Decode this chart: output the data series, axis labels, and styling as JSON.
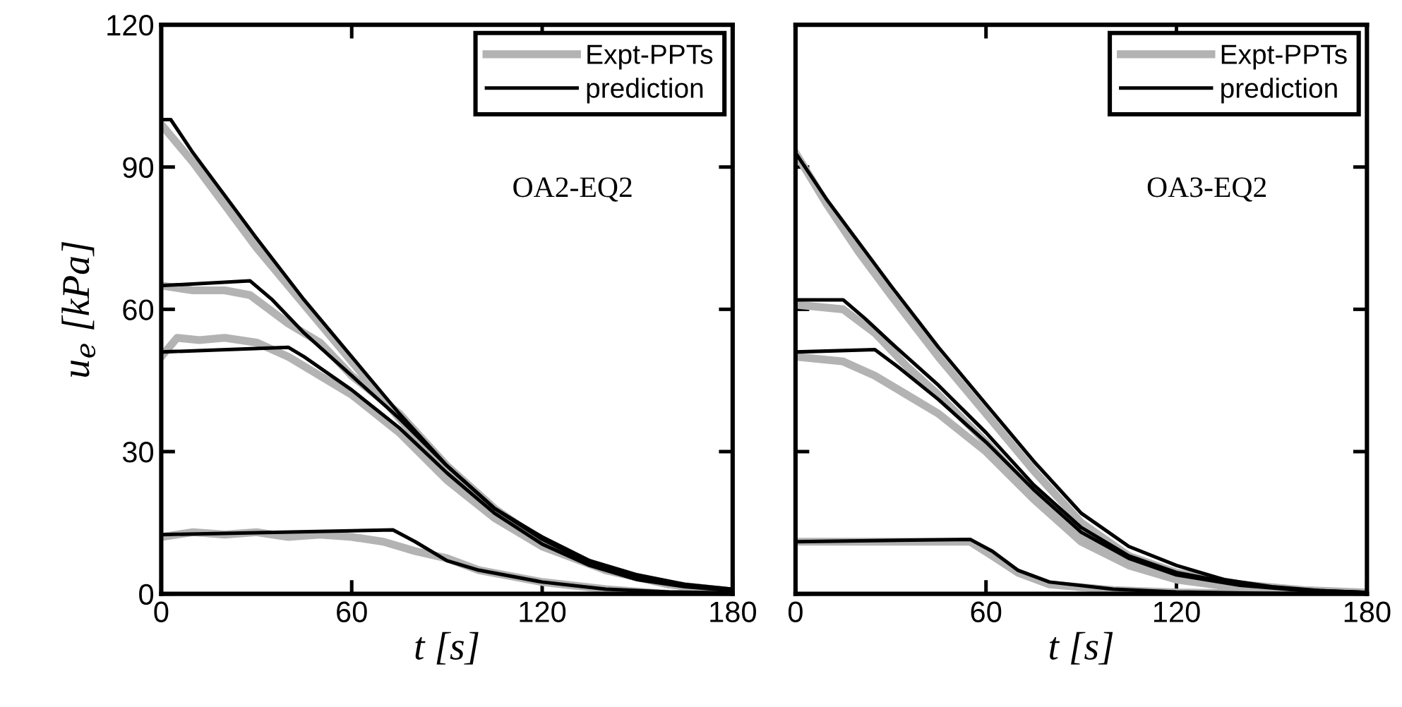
{
  "chart_data": [
    {
      "type": "line",
      "xlabel": "t [s]",
      "ylabel": "u$_{e}$ [kPa]",
      "annotations": [
        "OA2-EQ2"
      ],
      "xlim": [
        0,
        180
      ],
      "xticks": [
        0,
        60,
        120,
        180
      ],
      "ylim": [
        0,
        120
      ],
      "yticks": [
        0,
        30,
        60,
        90,
        120
      ],
      "legend": "top right",
      "grid": false,
      "series": [
        {
          "name": "Expt-PPTs",
          "color": "#b3b3b3",
          "x": [
            0,
            10,
            20,
            30,
            45,
            60,
            75,
            90,
            105,
            120,
            135,
            150,
            165,
            180
          ],
          "values": [
            99,
            91,
            82,
            73,
            61,
            49,
            37,
            26,
            17,
            11,
            6.5,
            3.5,
            1.5,
            0.5
          ]
        },
        {
          "color": "#b3b3b3",
          "x": [
            0,
            10,
            20,
            28,
            40,
            50,
            60,
            75,
            90,
            105,
            120,
            140,
            160,
            180
          ],
          "values": [
            65,
            64,
            64,
            63,
            57,
            53,
            46,
            38,
            27,
            18,
            11,
            5,
            2,
            0.5
          ]
        },
        {
          "color": "#b3b3b3",
          "x": [
            0,
            5,
            12,
            20,
            30,
            40,
            50,
            60,
            75,
            90,
            105,
            120,
            140,
            160,
            180
          ],
          "values": [
            50,
            54,
            53.5,
            54,
            53,
            50,
            46,
            42,
            34,
            24,
            16,
            10,
            5,
            2,
            0.5
          ]
        },
        {
          "color": "#b3b3b3",
          "x": [
            0,
            10,
            20,
            30,
            40,
            50,
            60,
            70,
            80,
            90,
            100,
            120,
            140,
            160,
            180
          ],
          "values": [
            12,
            13,
            12.5,
            13,
            12,
            12.5,
            12,
            11,
            9,
            7.5,
            5,
            2.5,
            1,
            0,
            0
          ]
        },
        {
          "name": "prediction",
          "color": "#000000",
          "x": [
            0,
            3,
            10,
            20,
            30,
            45,
            60,
            75,
            90,
            105,
            120,
            135,
            150,
            165,
            180
          ],
          "values": [
            100,
            100,
            93,
            84,
            75,
            62,
            50,
            38,
            27,
            18,
            12,
            7,
            4,
            2,
            1
          ]
        },
        {
          "color": "#000000",
          "x": [
            0,
            28,
            35,
            45,
            60,
            75,
            90,
            105,
            120,
            135,
            150,
            165,
            180
          ],
          "values": [
            65,
            66,
            62,
            55,
            46,
            37,
            27,
            18,
            11.5,
            6.5,
            3.5,
            1.8,
            0.8
          ]
        },
        {
          "color": "#000000",
          "x": [
            0,
            40,
            45,
            60,
            75,
            90,
            105,
            120,
            135,
            150,
            165,
            180
          ],
          "values": [
            51,
            52,
            50,
            43,
            35,
            25.5,
            17,
            10.5,
            6,
            3,
            1.5,
            0.7
          ]
        },
        {
          "color": "#000000",
          "x": [
            0,
            73,
            80,
            90,
            100,
            120,
            140,
            160,
            180
          ],
          "values": [
            12.5,
            13.5,
            11,
            7,
            5,
            2.5,
            1,
            0.4,
            0.2
          ]
        }
      ]
    },
    {
      "type": "line",
      "xlabel": "t [s]",
      "annotations": [
        "OA3-EQ2"
      ],
      "xlim": [
        0,
        180
      ],
      "xticks": [
        0,
        60,
        120,
        180
      ],
      "ylim": [
        0,
        120
      ],
      "yticks": [
        0,
        30,
        60,
        90,
        120
      ],
      "tick_labels": "x",
      "legend": "top right",
      "grid": false,
      "series": [
        {
          "name": "Expt-PPTs",
          "color": "#b3b3b3",
          "x": [
            0,
            10,
            20,
            30,
            45,
            60,
            75,
            90,
            105,
            120,
            140,
            160,
            180
          ],
          "values": [
            93,
            82,
            72,
            63,
            50,
            38,
            26,
            15,
            8,
            4.5,
            2,
            0.8,
            0.3
          ]
        },
        {
          "color": "#b3b3b3",
          "x": [
            0,
            15,
            25,
            35,
            45,
            60,
            75,
            90,
            105,
            120,
            140,
            160,
            180
          ],
          "values": [
            61,
            60,
            55,
            48,
            42,
            32,
            21,
            12,
            7,
            4,
            1.5,
            0.5,
            0.2
          ]
        },
        {
          "color": "#b3b3b3",
          "x": [
            0,
            15,
            25,
            35,
            45,
            60,
            75,
            90,
            105,
            120,
            140,
            160,
            180
          ],
          "values": [
            50,
            49,
            46,
            42,
            38,
            30,
            20,
            11,
            6,
            3,
            1.2,
            0.4,
            0.2
          ]
        },
        {
          "color": "#b3b3b3",
          "x": [
            0,
            55,
            62,
            70,
            80,
            100,
            120,
            150,
            180
          ],
          "values": [
            11,
            11,
            8,
            4.5,
            2,
            0.8,
            0.3,
            0,
            0
          ]
        },
        {
          "name": "prediction",
          "color": "#000000",
          "x": [
            0,
            10,
            20,
            30,
            45,
            60,
            75,
            90,
            105,
            120,
            135,
            150,
            165,
            180
          ],
          "values": [
            93,
            83,
            74,
            65,
            52,
            40,
            28,
            17,
            10,
            6,
            3,
            1.5,
            0.7,
            0.3
          ]
        },
        {
          "color": "#000000",
          "x": [
            0,
            15,
            22,
            30,
            45,
            60,
            75,
            90,
            105,
            120,
            140,
            160,
            180
          ],
          "values": [
            62,
            62,
            58,
            53,
            44,
            34,
            23,
            14,
            8,
            4.5,
            2,
            0.8,
            0.3
          ]
        },
        {
          "color": "#000000",
          "x": [
            0,
            25,
            32,
            45,
            60,
            75,
            90,
            105,
            120,
            140,
            160,
            180
          ],
          "values": [
            51,
            51.5,
            48,
            41,
            32,
            22,
            13,
            7.5,
            4,
            1.8,
            0.7,
            0.3
          ]
        },
        {
          "color": "#000000",
          "x": [
            0,
            55,
            62,
            70,
            80,
            100,
            120,
            150,
            180
          ],
          "values": [
            11,
            11.5,
            9,
            5,
            2.5,
            1,
            0.4,
            0.1,
            0
          ]
        }
      ]
    }
  ]
}
